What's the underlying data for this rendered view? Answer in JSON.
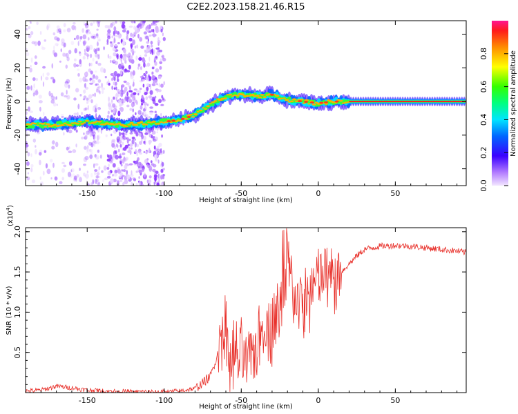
{
  "title": "C2E2.2023.158.21.46.R15",
  "chart_data": [
    {
      "type": "heatmap",
      "name": "spectrogram",
      "xlabel": "Height of straight line (km)",
      "ylabel": "Frequency (Hz)",
      "xlim": [
        -190,
        96
      ],
      "ylim": [
        -50,
        48
      ],
      "xticks": [
        -150,
        -100,
        -50,
        0,
        50
      ],
      "yticks": [
        -40,
        -20,
        0,
        20,
        40
      ],
      "ridge": {
        "x": [
          -190,
          -175,
          -160,
          -150,
          -140,
          -125,
          -110,
          -100,
          -90,
          -80,
          -70,
          -60,
          -50,
          -40,
          -30,
          -20,
          -10,
          0,
          10,
          20,
          30,
          60,
          96
        ],
        "y": [
          -14,
          -14,
          -13,
          -12,
          -13,
          -14,
          -13,
          -12,
          -11,
          -8,
          -2,
          3,
          4,
          3,
          4,
          1,
          0,
          -1,
          0,
          0,
          0,
          0,
          0
        ]
      },
      "colorbar": {
        "label": "Normalized spectral amplitude",
        "range": [
          0,
          1
        ],
        "ticks": [
          0.0,
          0.2,
          0.4,
          0.6,
          0.8
        ]
      }
    },
    {
      "type": "line",
      "name": "snr",
      "xlabel": "Height of straight line (km)",
      "ylabel": "SNR (10 * v/v)",
      "ymultiplier": "(x10",
      "ymultiplier_exp": "4",
      "ymultiplier_close": ")",
      "xlim": [
        -190,
        96
      ],
      "ylim": [
        0,
        2.05
      ],
      "xticks": [
        -150,
        -100,
        -50,
        0,
        50
      ],
      "yticks": [
        0.5,
        1.0,
        1.5,
        2.0
      ],
      "color": "#e8302a",
      "x": [
        -190,
        -180,
        -170,
        -160,
        -150,
        -140,
        -120,
        -100,
        -90,
        -80,
        -75,
        -70,
        -65,
        -62,
        -58,
        -55,
        -50,
        -45,
        -40,
        -35,
        -30,
        -25,
        -22,
        -20,
        -18,
        -15,
        -10,
        -5,
        0,
        5,
        10,
        15,
        20,
        25,
        30,
        40,
        50,
        60,
        70,
        80,
        90,
        96
      ],
      "y": [
        0.02,
        0.03,
        0.08,
        0.06,
        0.03,
        0.02,
        0.01,
        0.01,
        0.02,
        0.05,
        0.12,
        0.2,
        0.5,
        0.8,
        0.6,
        0.45,
        0.4,
        0.35,
        0.6,
        0.9,
        0.85,
        1.0,
        1.3,
        1.6,
        1.4,
        1.2,
        1.05,
        1.25,
        1.4,
        1.5,
        1.35,
        1.5,
        1.6,
        1.7,
        1.78,
        1.82,
        1.83,
        1.82,
        1.8,
        1.78,
        1.76,
        1.74
      ]
    }
  ]
}
